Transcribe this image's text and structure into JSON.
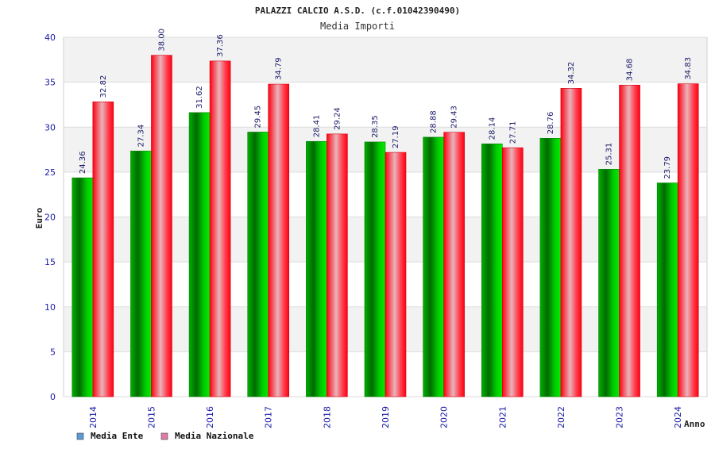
{
  "chart_data": {
    "type": "bar",
    "title": "PALAZZI CALCIO A.S.D. (c.f.01042390490)",
    "subtitle": "Media Importi",
    "xlabel": "Anno",
    "ylabel": "Euro",
    "ylim": [
      0,
      40
    ],
    "yticks": [
      0,
      5,
      10,
      15,
      20,
      25,
      30,
      35,
      40
    ],
    "categories": [
      "2014",
      "2015",
      "2016",
      "2017",
      "2018",
      "2019",
      "2020",
      "2021",
      "2022",
      "2023",
      "2024"
    ],
    "series": [
      {
        "name": "Media Ente",
        "color": "#00c000",
        "values": [
          24.36,
          27.34,
          31.62,
          29.45,
          28.41,
          28.35,
          28.88,
          28.14,
          28.76,
          25.31,
          23.79
        ]
      },
      {
        "name": "Media Nazionale",
        "color": "#ff0020",
        "values": [
          32.82,
          38.0,
          37.36,
          34.79,
          29.24,
          27.19,
          29.43,
          27.71,
          34.32,
          34.68,
          34.83
        ]
      }
    ],
    "data_labels": [
      [
        "24.36",
        "27.34",
        "31.62",
        "29.45",
        "28.41",
        "28.35",
        "28.88",
        "28.14",
        "28.76",
        "25.31",
        "23.79"
      ],
      [
        "32.82",
        "38.00",
        "37.36",
        "34.79",
        "29.24",
        "27.19",
        "29.43",
        "27.71",
        "34.32",
        "34.68",
        "34.83"
      ]
    ],
    "legend": {
      "placement": "bottom-left",
      "items": [
        {
          "label": "Media Ente",
          "swatch": "#5b9bd5"
        },
        {
          "label": "Media Nazionale",
          "swatch": "#e07aa8"
        }
      ]
    },
    "grid": true
  }
}
